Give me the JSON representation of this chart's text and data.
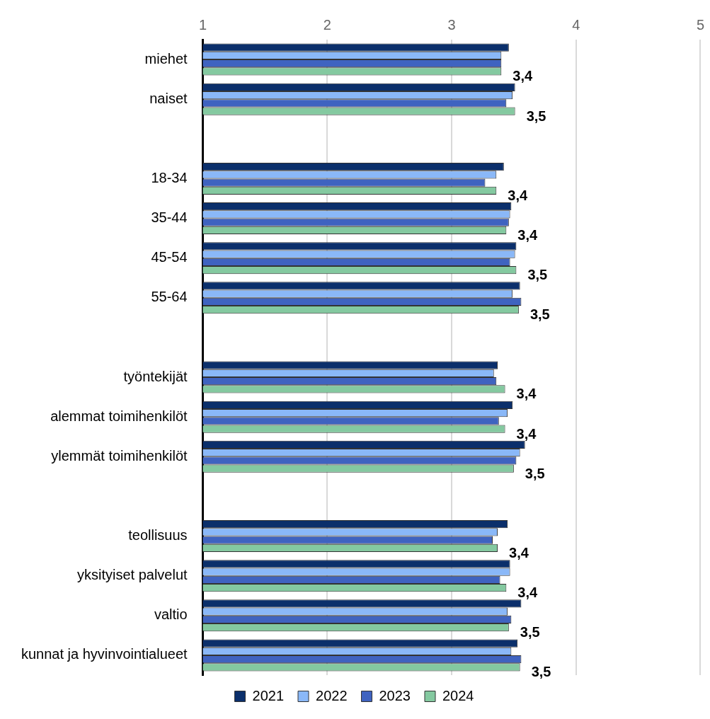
{
  "chart_data": {
    "type": "bar",
    "orientation": "horizontal",
    "categories": [
      "miehet",
      "naiset",
      null,
      "18-34",
      "35-44",
      "45-54",
      "55-64",
      null,
      "työntekijät",
      "alemmat toimihenkilöt",
      "ylemmät toimihenkilöt",
      null,
      "teollisuus",
      "yksityiset palvelut",
      "valtio",
      "kunnat ja hyvinvointialueet"
    ],
    "series": [
      {
        "name": "2021",
        "color": "#0b2f6b",
        "values": [
          3.46,
          3.51,
          null,
          3.42,
          3.48,
          3.52,
          3.55,
          null,
          3.37,
          3.49,
          3.59,
          null,
          3.45,
          3.47,
          3.56,
          3.53
        ]
      },
      {
        "name": "2022",
        "color": "#8ab8f8",
        "values": [
          3.4,
          3.49,
          null,
          3.36,
          3.47,
          3.51,
          3.49,
          null,
          3.34,
          3.45,
          3.55,
          null,
          3.37,
          3.47,
          3.45,
          3.48
        ]
      },
      {
        "name": "2023",
        "color": "#3f63c0",
        "values": [
          3.4,
          3.44,
          null,
          3.27,
          3.46,
          3.47,
          3.56,
          null,
          3.36,
          3.38,
          3.52,
          null,
          3.33,
          3.39,
          3.48,
          3.56
        ]
      },
      {
        "name": "2024",
        "color": "#84c9a0",
        "values": [
          3.4,
          3.51,
          null,
          3.36,
          3.44,
          3.52,
          3.54,
          null,
          3.43,
          3.43,
          3.5,
          null,
          3.37,
          3.44,
          3.46,
          3.55
        ],
        "value_labels": [
          "3,4",
          "3,5",
          null,
          "3,4",
          "3,4",
          "3,5",
          "3,5",
          null,
          "3,4",
          "3,4",
          "3,5",
          null,
          "3,4",
          "3,4",
          "3,5",
          "3,5"
        ]
      }
    ],
    "xlim": [
      1,
      5
    ],
    "xticks": [
      1,
      2,
      3,
      4,
      5
    ],
    "grid": "x",
    "legend": "bottom"
  }
}
